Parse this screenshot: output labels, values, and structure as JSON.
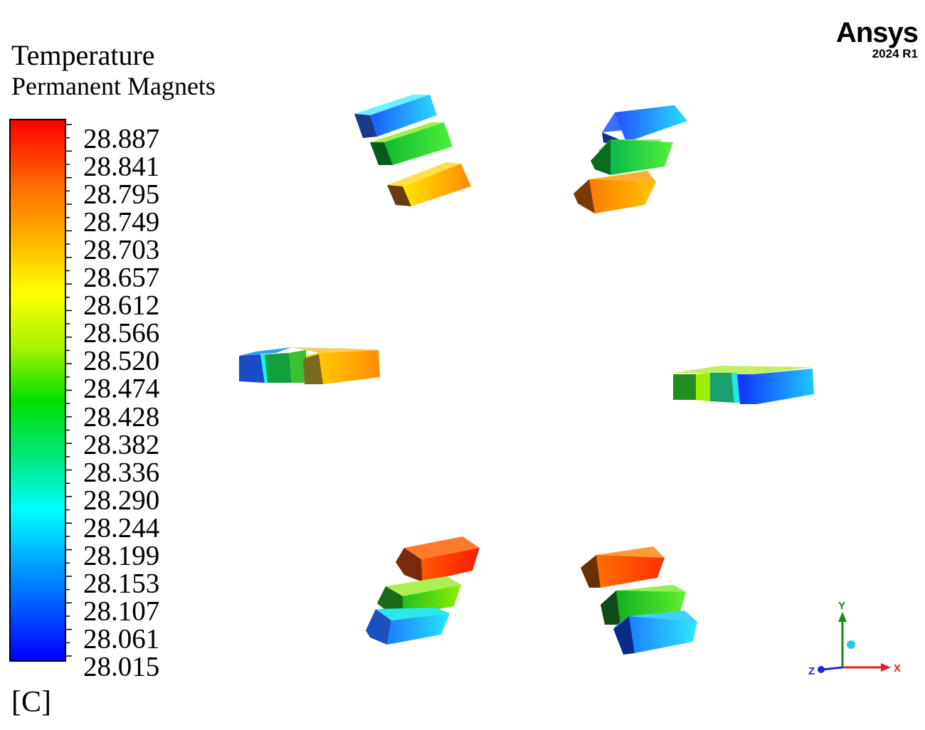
{
  "legend": {
    "title": "Temperature",
    "subtitle": "Permanent Magnets",
    "units": "[C]",
    "values": [
      "28.887",
      "28.841",
      "28.795",
      "28.749",
      "28.703",
      "28.657",
      "28.612",
      "28.566",
      "28.520",
      "28.474",
      "28.428",
      "28.382",
      "28.336",
      "28.290",
      "28.244",
      "28.199",
      "28.153",
      "28.107",
      "28.061",
      "28.015"
    ],
    "colors": {
      "max": "#ff0000",
      "min": "#0000ff"
    }
  },
  "brand": {
    "name": "Ansys",
    "version": "2024 R1"
  },
  "triad": {
    "x": "X",
    "y": "Y",
    "z": "Z",
    "colors": {
      "x": "#e0202a",
      "y": "#1a8a1a",
      "z": "#1a2ad8"
    }
  }
}
